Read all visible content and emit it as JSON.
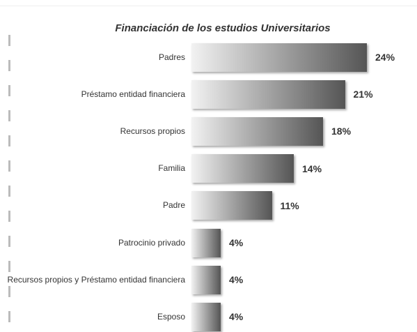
{
  "chart_data": {
    "type": "bar",
    "orientation": "horizontal",
    "title": "Financiación de los estudios Universitarios",
    "categories": [
      "Padres",
      "Préstamo entidad financiera",
      "Recursos propios",
      "Familia",
      "Padre",
      "Patrocinio privado",
      "Recursos propios y Préstamo entidad financiera",
      "Esposo"
    ],
    "values": [
      24,
      21,
      18,
      14,
      11,
      4,
      4,
      4
    ],
    "value_labels": [
      "24%",
      "21%",
      "18%",
      "14%",
      "11%",
      "4%",
      "4%",
      "4%"
    ],
    "color": "#555555"
  }
}
